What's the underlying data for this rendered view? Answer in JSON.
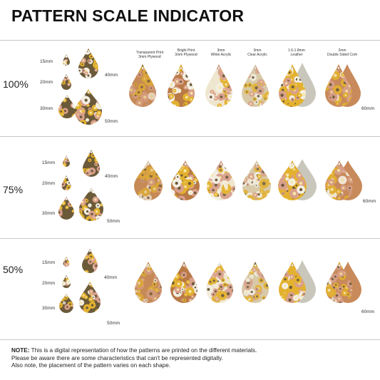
{
  "title": "PATTERN SCALE INDICATOR",
  "sections": [
    {
      "percent": "100%"
    },
    {
      "percent": "75%"
    },
    {
      "percent": "50%"
    }
  ],
  "size_labels": {
    "s15": "15mm",
    "s20": "20mm",
    "s30": "30mm",
    "s40": "40mm",
    "s50": "50mm",
    "s60": "60mm"
  },
  "materials": [
    {
      "line1": "Transparent Print",
      "line2": "3mm Plywood"
    },
    {
      "line1": "Bright Print",
      "line2": "3mm Plywood"
    },
    {
      "line1": "3mm",
      "line2": "White Acrylic"
    },
    {
      "line1": "3mm",
      "line2": "Clear Acrylic"
    },
    {
      "line1": "1.6-1.8mm",
      "line2": "Leather"
    },
    {
      "line1": "2mm",
      "line2": "Double Sided Cork"
    }
  ],
  "note": {
    "label": "NOTE:",
    "line1": " This is a digital representation of how the patterns are printed on the different materials.",
    "line2": "Please be aware there are some characteristics that can't be represented digitally.",
    "line3": "Also note, the placement of the pattern varies on each shape."
  },
  "colors": {
    "wood": "#c58a56",
    "bright_wood": "#b97a46",
    "white_acrylic": "#efe6cf",
    "clear_acrylic": "#d8c9a8",
    "leather_back": "#c9c7bb",
    "cork_back": "#c88a5a",
    "flower_yellow": "#e3b12f",
    "flower_pink": "#d9a08c",
    "flower_white": "#f3efe4",
    "flower_dark": "#6b5a3a"
  }
}
